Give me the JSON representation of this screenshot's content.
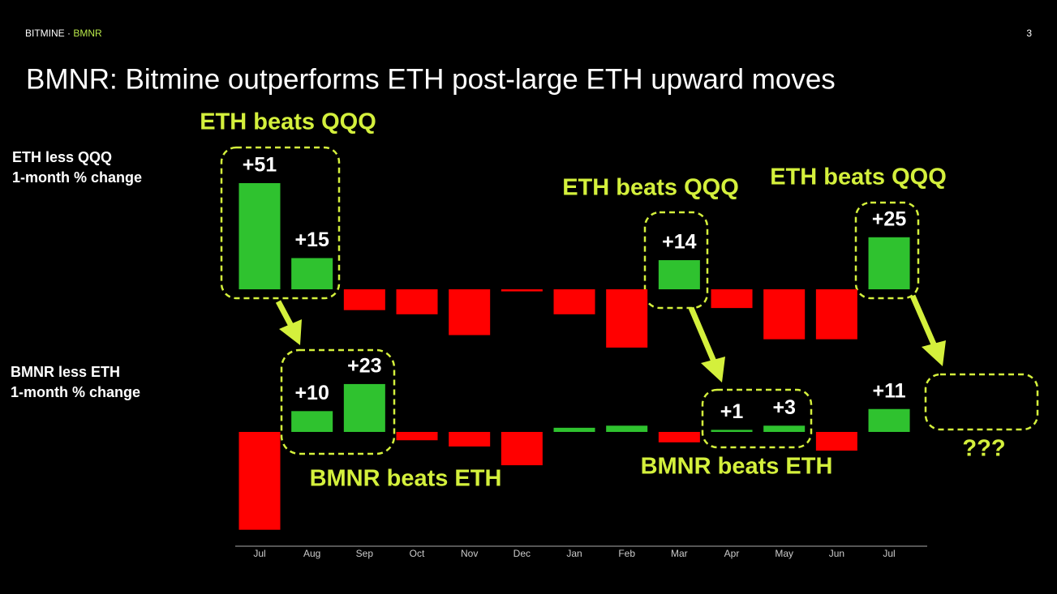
{
  "header": {
    "brand": "BITMINE ·",
    "ticker": "BMNR",
    "page": "3"
  },
  "title": "BMNR: Bitmine outperforms ETH post-large ETH upward moves",
  "annotations": [
    "ETH beats QQQ",
    "ETH beats QQQ",
    "ETH beats QQQ",
    "BMNR beats ETH",
    "BMNR beats ETH",
    "???"
  ],
  "chart_data": [
    {
      "type": "bar",
      "ylabel": [
        "ETH less QQQ",
        "1-month % change"
      ],
      "values": [
        51,
        15,
        -10,
        -12,
        -22,
        -1,
        -12,
        -28,
        14,
        -9,
        -24,
        -24,
        25
      ],
      "value_labels": [
        "+51",
        "+15",
        null,
        null,
        null,
        null,
        null,
        null,
        "+14",
        null,
        null,
        null,
        "+25"
      ],
      "colors": {
        "positive": "#2fc22f",
        "negative": "#ff0000"
      }
    },
    {
      "type": "bar",
      "ylabel": [
        "BMNR less ETH",
        "1-month % change"
      ],
      "categories": [
        "Jul",
        "Aug",
        "Sep",
        "Oct",
        "Nov",
        "Dec",
        "Jan",
        "Feb",
        "Mar",
        "Apr",
        "May",
        "Jun",
        "Jul"
      ],
      "values": [
        -47,
        10,
        23,
        -4,
        -7,
        -16,
        2,
        3,
        -5,
        1,
        3,
        -9,
        11
      ],
      "value_labels": [
        null,
        "+10",
        "+23",
        null,
        null,
        null,
        null,
        null,
        null,
        "+1",
        "+3",
        null,
        "+11"
      ],
      "colors": {
        "positive": "#2fc22f",
        "negative": "#ff0000"
      }
    }
  ]
}
